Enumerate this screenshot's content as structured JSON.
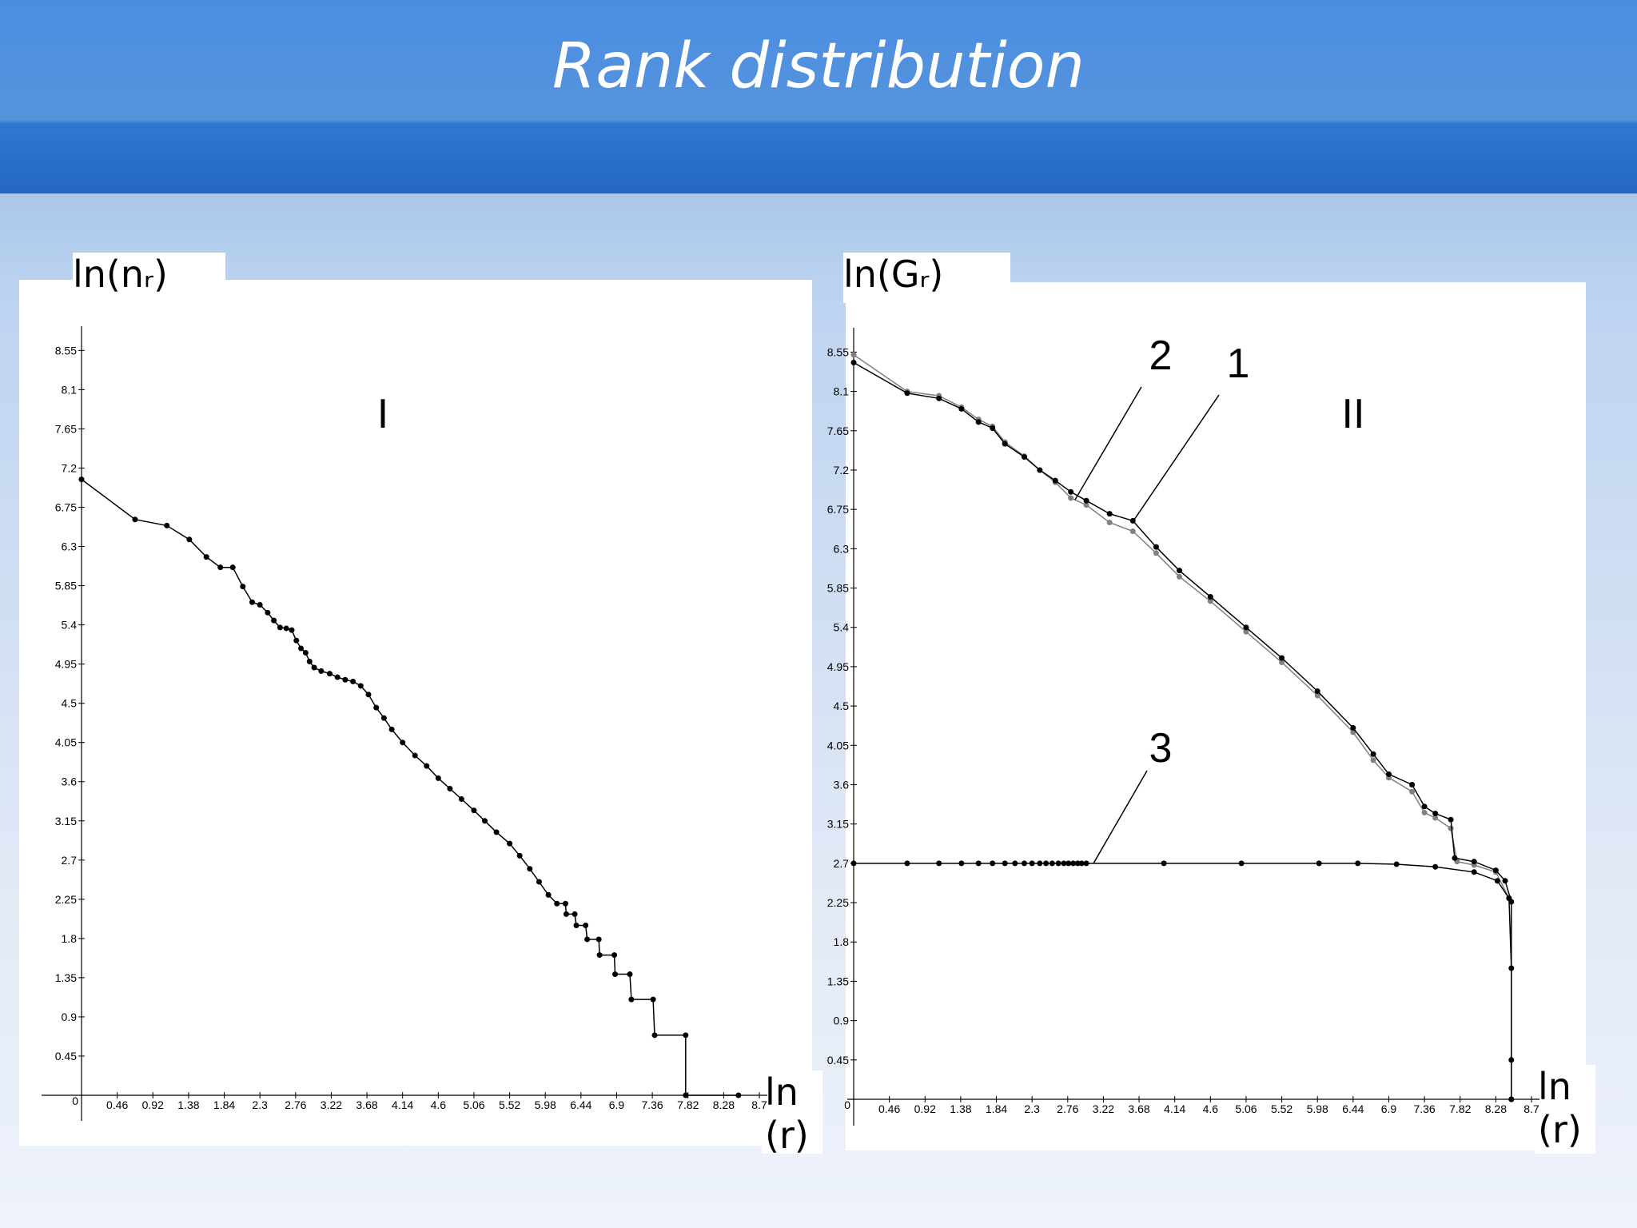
{
  "title": "Rank distribution",
  "chart_data": [
    {
      "type": "line",
      "y_label": "ln(nᵣ)",
      "x_label": "ln(r)",
      "annotation": "I",
      "color": "#000000",
      "xlim": [
        0,
        8.74
      ],
      "ylim": [
        0,
        8.7
      ],
      "xticks": [
        0,
        0.46,
        0.92,
        1.38,
        1.84,
        2.3,
        2.76,
        3.22,
        3.68,
        4.14,
        4.6,
        5.06,
        5.52,
        5.98,
        6.44,
        6.9,
        7.36,
        7.82,
        8.28,
        {
          "value": 8.74,
          "label": "8.7"
        }
      ],
      "yticks": [
        0.45,
        0.9,
        1.35,
        1.8,
        2.25,
        2.7,
        3.15,
        3.6,
        4.05,
        4.5,
        4.95,
        5.4,
        5.85,
        6.3,
        6.75,
        7.2,
        7.65,
        8.1,
        8.55
      ],
      "x": [
        0,
        0.69,
        1.1,
        1.39,
        1.61,
        1.79,
        1.95,
        2.08,
        2.2,
        2.3,
        2.4,
        2.48,
        2.56,
        2.64,
        2.71,
        2.77,
        2.83,
        2.89,
        2.94,
        3.0,
        3.09,
        3.2,
        3.3,
        3.4,
        3.5,
        3.6,
        3.7,
        3.8,
        3.9,
        4.0,
        4.14,
        4.3,
        4.45,
        4.6,
        4.75,
        4.9,
        5.06,
        5.2,
        5.35,
        5.52,
        5.65,
        5.78,
        5.9,
        6.02,
        6.13,
        6.24,
        6.25,
        6.36,
        6.38,
        6.5,
        6.52,
        6.67,
        6.68,
        6.87,
        6.88,
        7.07,
        7.09,
        7.37,
        7.39,
        7.79,
        7.79,
        8.47
      ],
      "values": [
        7.07,
        6.61,
        6.54,
        6.38,
        6.18,
        6.06,
        6.06,
        5.84,
        5.66,
        5.63,
        5.54,
        5.45,
        5.37,
        5.36,
        5.34,
        5.22,
        5.13,
        5.08,
        4.98,
        4.91,
        4.87,
        4.84,
        4.8,
        4.77,
        4.75,
        4.7,
        4.6,
        4.45,
        4.33,
        4.2,
        4.05,
        3.9,
        3.78,
        3.64,
        3.52,
        3.4,
        3.27,
        3.15,
        3.02,
        2.89,
        2.75,
        2.6,
        2.45,
        2.3,
        2.2,
        2.2,
        2.08,
        2.08,
        1.95,
        1.95,
        1.79,
        1.79,
        1.61,
        1.61,
        1.39,
        1.39,
        1.1,
        1.1,
        0.69,
        0.69,
        0,
        0
      ]
    },
    {
      "type": "line",
      "y_label": "ln(Gᵣ)",
      "x_label": "ln(r)",
      "annotation": "II",
      "xlim": [
        0,
        8.74
      ],
      "ylim": [
        0,
        8.7
      ],
      "xticks": [
        0,
        0.46,
        0.92,
        1.38,
        1.84,
        2.3,
        2.76,
        3.22,
        3.68,
        4.14,
        4.6,
        5.06,
        5.52,
        5.98,
        6.44,
        6.9,
        7.36,
        7.82,
        8.28,
        {
          "value": 8.74,
          "label": "8.7"
        }
      ],
      "yticks": [
        0.45,
        0.9,
        1.35,
        1.8,
        2.25,
        2.7,
        3.15,
        3.6,
        4.05,
        4.5,
        4.95,
        5.4,
        5.85,
        6.3,
        6.75,
        7.2,
        7.65,
        8.1,
        8.55
      ],
      "series": [
        {
          "name": "1",
          "color": "#000000",
          "x": [
            0,
            0.69,
            1.1,
            1.39,
            1.61,
            1.79,
            1.95,
            2.2,
            2.4,
            2.6,
            2.8,
            3.0,
            3.3,
            3.6,
            3.9,
            4.2,
            4.6,
            5.06,
            5.52,
            5.98,
            6.44,
            6.7,
            6.9,
            7.2,
            7.36,
            7.5,
            7.7,
            7.75,
            8.0,
            8.28,
            8.4,
            8.48,
            8.48
          ],
          "values": [
            8.43,
            8.08,
            8.02,
            7.9,
            7.75,
            7.68,
            7.5,
            7.35,
            7.2,
            7.08,
            6.95,
            6.85,
            6.7,
            6.62,
            6.32,
            6.05,
            5.75,
            5.4,
            5.05,
            4.67,
            4.25,
            3.95,
            3.72,
            3.6,
            3.35,
            3.27,
            3.2,
            2.76,
            2.72,
            2.62,
            2.5,
            2.26,
            0
          ]
        },
        {
          "name": "2",
          "color": "#808080",
          "x": [
            0,
            0.69,
            1.1,
            1.39,
            1.61,
            1.79,
            1.95,
            2.2,
            2.4,
            2.6,
            2.8,
            3.0,
            3.3,
            3.6,
            3.9,
            4.2,
            4.6,
            5.06,
            5.52,
            5.98,
            6.44,
            6.7,
            6.9,
            7.2,
            7.36,
            7.5,
            7.7,
            7.78,
            8.0,
            8.28,
            8.45
          ],
          "values": [
            8.52,
            8.1,
            8.05,
            7.92,
            7.78,
            7.7,
            7.52,
            7.36,
            7.2,
            7.06,
            6.88,
            6.8,
            6.6,
            6.5,
            6.25,
            5.98,
            5.7,
            5.35,
            5.0,
            4.62,
            4.2,
            3.88,
            3.68,
            3.52,
            3.28,
            3.22,
            3.1,
            2.72,
            2.68,
            2.6,
            2.3
          ]
        },
        {
          "name": "3",
          "color": "#000000",
          "x": [
            0,
            0.69,
            1.1,
            1.39,
            1.61,
            1.79,
            1.95,
            2.08,
            2.2,
            2.3,
            2.4,
            2.48,
            2.56,
            2.64,
            2.71,
            2.77,
            2.83,
            2.89,
            2.94,
            3.0,
            4.0,
            5.0,
            6.0,
            6.5,
            7.0,
            7.5,
            8.0,
            8.3,
            8.45,
            8.48,
            8.48,
            8.48
          ],
          "values": [
            2.7,
            2.7,
            2.7,
            2.7,
            2.7,
            2.7,
            2.7,
            2.7,
            2.7,
            2.7,
            2.7,
            2.7,
            2.7,
            2.7,
            2.7,
            2.7,
            2.7,
            2.7,
            2.7,
            2.7,
            2.7,
            2.7,
            2.7,
            2.7,
            2.69,
            2.66,
            2.6,
            2.5,
            2.3,
            1.5,
            0.45,
            0
          ]
        }
      ]
    }
  ]
}
